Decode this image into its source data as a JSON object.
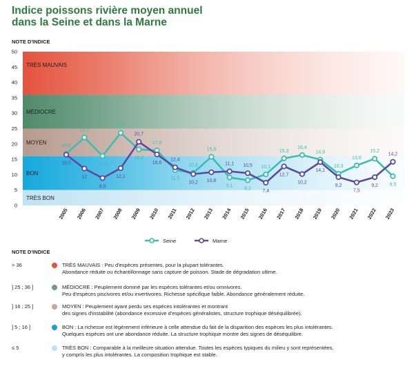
{
  "title": [
    "Indice poissons rivière moyen annuel",
    "dans la Seine et dans la Marne"
  ],
  "chart_data": {
    "type": "line",
    "ylabel": "NOTE D'INDICE",
    "ylim": [
      0,
      50
    ],
    "yticks": [
      0,
      5,
      10,
      15,
      20,
      25,
      30,
      35,
      40,
      45,
      50
    ],
    "categories": [
      "2005",
      "2006",
      "2007",
      "2008",
      "2009",
      "2010",
      "2011",
      "2012",
      "2013",
      "2014",
      "2015",
      "2016",
      "2017",
      "2018",
      "2019",
      "2020",
      "2021",
      "2022",
      "2023"
    ],
    "series": [
      {
        "name": "Seine",
        "color": "#3dbdb0",
        "values": [
          16.8,
          22.1,
          16.1,
          23.6,
          18.2,
          17.9,
          11.5,
          10.6,
          15.8,
          9.1,
          8.2,
          10.1,
          15.3,
          16.4,
          14.9,
          10.3,
          13.0,
          15.2,
          9.5
        ],
        "labels": [
          "16,8",
          "22,1",
          "16,1",
          "23,6",
          "18,2",
          "17,9",
          "11,5",
          "10,6",
          "15,8",
          "9,1",
          "8,2",
          "10,1",
          "15,3",
          "16,4",
          "14,9",
          "10,3",
          "13,0",
          "15,2",
          "9,5"
        ]
      },
      {
        "name": "Marne",
        "color": "#5b4a9e",
        "values": [
          16.5,
          12.0,
          8.9,
          12.1,
          20.7,
          16.6,
          12.4,
          10.2,
          10.8,
          11.1,
          10.5,
          7.4,
          12.7,
          10.2,
          14.1,
          9.2,
          7.5,
          9.2,
          14.2
        ],
        "labels": [
          "16,5",
          "12",
          "8,9",
          "12,1",
          "20,7",
          "16,6",
          "12,4",
          "10,2",
          "10,8",
          "11,1",
          "10,5",
          "7,4",
          "12,7",
          "10,2",
          "14,1",
          "9,2",
          "7,5",
          "9,2",
          "14,2"
        ]
      }
    ],
    "bands": [
      {
        "label": "TRÈS MAUVAIS",
        "from": 36,
        "to": 50,
        "color_top": "#e4533d",
        "color_bottom": "#fbe3dc"
      },
      {
        "label": "MÉDIOCRE",
        "from": 25,
        "to": 36,
        "color_top": "#4f8a6b",
        "color_bottom": "#e6eee9"
      },
      {
        "label": "MOYEN",
        "from": 16,
        "to": 25,
        "color_top": "#b79a8e",
        "color_bottom": "#f3ede9"
      },
      {
        "label": "BON",
        "from": 5,
        "to": 16,
        "color_top": "#14a9dc",
        "color_bottom": "#e3f4fb"
      },
      {
        "label": "TRÈS BON",
        "from": 0,
        "to": 5,
        "color_top": "#bfe3f3",
        "color_bottom": "#f4fafd"
      }
    ]
  },
  "legend": {
    "title": "NOTE D'INDICE",
    "items": [
      {
        "range": "> 36",
        "color": "#e4533d",
        "lines": [
          "TRÈS MAUVAIS : Peu d'espèces présentes, pour la plupart tolérantes.",
          "Abondance réduite ou échantillonnage sans capture de poisson. Stade de dégradation ultime."
        ]
      },
      {
        "range": "] 25 ; 36 ]",
        "color": "#6f9c84",
        "lines": [
          "MÉDIOCRE : Peuplement dominé par les espèces tolérantes et/ou omnivores.",
          "Peu d'espèces piscivores et/ou invertivores. Richesse spécifique faible. Abondance généralement réduite."
        ]
      },
      {
        "range": "] 16 ; 25 ]",
        "color": "#c7a79b",
        "lines": [
          "MOYEN : Peuplement ayant perdu ses espèces intolérantes et montrant",
          "des signes d'instabilité (abondance excessive d'espèces généralistes, structure trophique déséquilibrée)."
        ]
      },
      {
        "range": "] 5 ; 16 ]",
        "color": "#13a3d6",
        "lines": [
          "BON : La richesse est légèrement inférieure à celle attendue du fait de la disparition des espèces les plus intolérantes.",
          "Quelques espèces ont une abondance réduite. La structure trophique montre des signes de déséquilibre."
        ]
      },
      {
        "range": "≤ 5",
        "color": "#bfe1f2",
        "lines": [
          "TRÈS BON : Comparable à la meilleure situation attendue. Toutes les espèces typiques du milieu y sont représentées,",
          "y compris les plus intolérantes. La composition trophique est stable."
        ]
      }
    ]
  }
}
